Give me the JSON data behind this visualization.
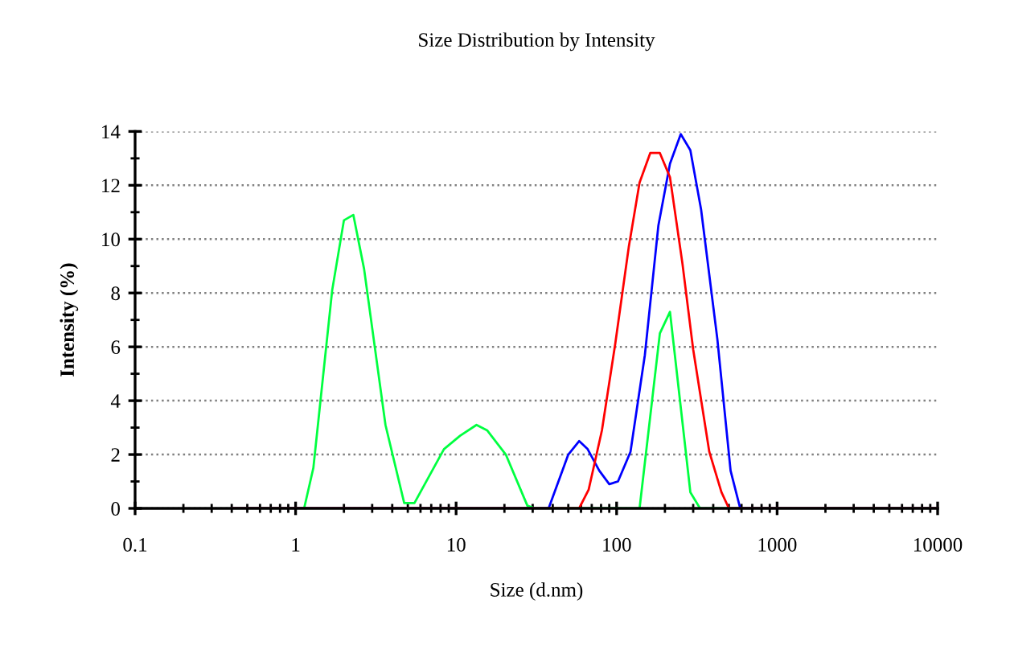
{
  "chart_data": {
    "type": "line",
    "title": "Size Distribution by Intensity",
    "xlabel": "Size (d.nm)",
    "ylabel": "Intensity (%)",
    "log": "x",
    "grid": "y",
    "legend": false,
    "marker": "none",
    "line_style": "solid",
    "xlim": [
      0.1,
      10000
    ],
    "xticks": [
      0.1,
      1,
      10,
      100,
      1000,
      10000
    ],
    "ylim": [
      0,
      14
    ],
    "yticks": [
      0,
      {
        "value": 1,
        "label": null
      },
      2,
      {
        "value": 3,
        "label": null
      },
      4,
      {
        "value": 5,
        "label": null
      },
      6,
      {
        "value": 7,
        "label": null
      },
      8,
      {
        "value": 9,
        "label": null
      },
      10,
      {
        "value": 11,
        "label": null
      },
      12,
      {
        "value": 13,
        "label": null
      },
      14
    ],
    "series": [
      {
        "color": "#00ff40",
        "x": [
          0.4,
          1.13,
          1.29,
          1.69,
          2.0,
          2.29,
          2.67,
          3.63,
          4.75,
          5.5,
          8.4,
          10.6,
          13.4,
          15.6,
          20.4,
          27.8,
          31,
          139,
          186,
          215,
          288,
          331,
          10000
        ],
        "values": [
          0,
          0,
          1.5,
          8.1,
          10.7,
          10.9,
          8.9,
          3.1,
          0.2,
          0.2,
          2.2,
          2.7,
          3.1,
          2.9,
          2.0,
          0.1,
          0,
          0,
          6.5,
          7.3,
          0.6,
          0,
          0
        ]
      },
      {
        "color": "#0000ff",
        "x": [
          0.4,
          37.7,
          50,
          58.4,
          66,
          78,
          90,
          102,
          122,
          150,
          182,
          215,
          251,
          288,
          336,
          424,
          513,
          589,
          10000
        ],
        "values": [
          0,
          0,
          2.0,
          2.5,
          2.2,
          1.4,
          0.9,
          1.0,
          2.1,
          5.7,
          10.5,
          12.8,
          13.9,
          13.3,
          11.1,
          6.3,
          1.4,
          0,
          0
        ]
      },
      {
        "color": "#ff0000",
        "x": [
          0.4,
          58.4,
          67,
          81,
          98,
          119,
          139,
          162,
          186,
          215,
          257,
          300,
          378,
          450,
          501,
          10000
        ],
        "values": [
          0,
          0,
          0.7,
          2.9,
          6.1,
          9.7,
          12.1,
          13.2,
          13.2,
          12.3,
          9.1,
          5.9,
          2.1,
          0.6,
          0,
          0
        ]
      }
    ]
  }
}
